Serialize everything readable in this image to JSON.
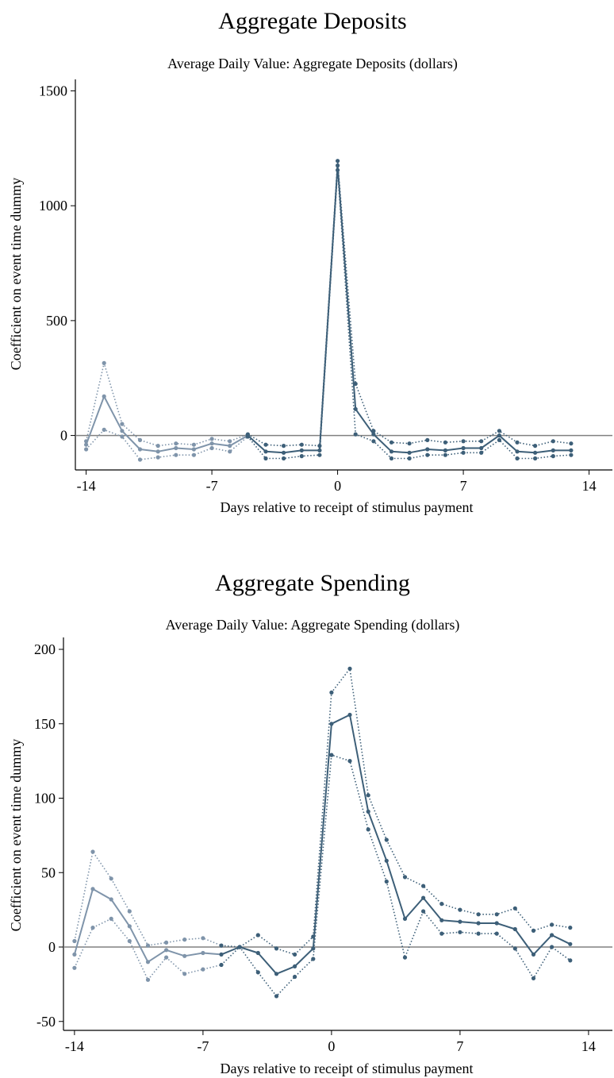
{
  "chart_data": [
    {
      "type": "line",
      "title": "Aggregate Deposits",
      "subtitle": "Average Daily Value: Aggregate Deposits (dollars)",
      "xlabel": "Days relative to receipt of stimulus payment",
      "ylabel": "Coefficient on event time dummy",
      "xlim": [
        -14.6,
        15.3
      ],
      "ylim": [
        -150,
        1550
      ],
      "xticks": [
        -14,
        -7,
        0,
        7,
        14
      ],
      "xtick_labels": [
        "-14",
        "-7",
        "0",
        "7",
        "14"
      ],
      "yticks": [
        0,
        500,
        1000,
        1500
      ],
      "ytick_labels": [
        "0",
        "500",
        "1000",
        "1500"
      ],
      "reference_line": 0,
      "grid": false,
      "legend": "none",
      "colors": {
        "pre": "#7f94aa",
        "post": "#3d5f78",
        "zero_line": "#808080"
      },
      "split_x": -5,
      "x": [
        -14,
        -13,
        -12,
        -11,
        -10,
        -9,
        -8,
        -7,
        -6,
        -5,
        -4,
        -3,
        -2,
        -1,
        0,
        1,
        2,
        3,
        4,
        5,
        6,
        7,
        8,
        9,
        10,
        11,
        12,
        13
      ],
      "series": [
        {
          "role": "upper",
          "values": [
            -25,
            315,
            50,
            -20,
            -45,
            -35,
            -40,
            -15,
            -25,
            5,
            -40,
            -45,
            -40,
            -45,
            1195,
            225,
            20,
            -30,
            -35,
            -20,
            -30,
            -25,
            -25,
            20,
            -30,
            -45,
            -25,
            -35
          ]
        },
        {
          "role": "estimate",
          "values": [
            -40,
            170,
            20,
            -60,
            -70,
            -55,
            -60,
            -35,
            -45,
            0,
            -70,
            -75,
            -65,
            -65,
            1175,
            115,
            5,
            -70,
            -75,
            -60,
            -65,
            -55,
            -55,
            0,
            -70,
            -75,
            -65,
            -65
          ]
        },
        {
          "role": "lower",
          "values": [
            -60,
            25,
            -5,
            -105,
            -95,
            -85,
            -85,
            -55,
            -70,
            -5,
            -100,
            -100,
            -90,
            -85,
            1155,
            5,
            -25,
            -100,
            -100,
            -85,
            -85,
            -75,
            -75,
            -20,
            -100,
            -100,
            -90,
            -85
          ]
        }
      ]
    },
    {
      "type": "line",
      "title": "Aggregate Spending",
      "subtitle": "Average Daily Value: Aggregate Spending (dollars)",
      "xlabel": "Days relative to receipt of stimulus payment",
      "ylabel": "Coefficient on event time dummy",
      "xlim": [
        -14.6,
        15.3
      ],
      "ylim": [
        -56,
        208
      ],
      "xticks": [
        -14,
        -7,
        0,
        7,
        14
      ],
      "xtick_labels": [
        "-14",
        "-7",
        "0",
        "7",
        "14"
      ],
      "yticks": [
        -50,
        0,
        50,
        100,
        150,
        200
      ],
      "ytick_labels": [
        "-50",
        "0",
        "50",
        "100",
        "150",
        "200"
      ],
      "reference_line": 0,
      "grid": false,
      "legend": "none",
      "colors": {
        "pre": "#7f94aa",
        "post": "#3d5f78",
        "zero_line": "#808080"
      },
      "split_x": -6,
      "x": [
        -14,
        -13,
        -12,
        -11,
        -10,
        -9,
        -8,
        -7,
        -6,
        -5,
        -4,
        -3,
        -2,
        -1,
        0,
        1,
        2,
        3,
        4,
        5,
        6,
        7,
        8,
        9,
        10,
        11,
        12,
        13
      ],
      "series": [
        {
          "role": "upper",
          "values": [
            4,
            64,
            46,
            24,
            1,
            3,
            5,
            6,
            1,
            0,
            8,
            -1,
            -5,
            7,
            171,
            187,
            102,
            72,
            47,
            41,
            29,
            25,
            22,
            22,
            26,
            11,
            15,
            13
          ]
        },
        {
          "role": "estimate",
          "values": [
            -5,
            39,
            32,
            14,
            -10,
            -2,
            -6,
            -4,
            -5,
            0,
            -4,
            -18,
            -13,
            -1,
            150,
            156,
            91,
            58,
            19,
            33,
            18,
            17,
            16,
            16,
            12,
            -5,
            8,
            2
          ]
        },
        {
          "role": "lower",
          "values": [
            -14,
            13,
            19,
            4,
            -22,
            -7,
            -18,
            -15,
            -12,
            0,
            -17,
            -33,
            -20,
            -8,
            129,
            125,
            79,
            44,
            -7,
            24,
            9,
            10,
            9,
            9,
            -1,
            -21,
            0,
            -9
          ]
        }
      ]
    }
  ]
}
